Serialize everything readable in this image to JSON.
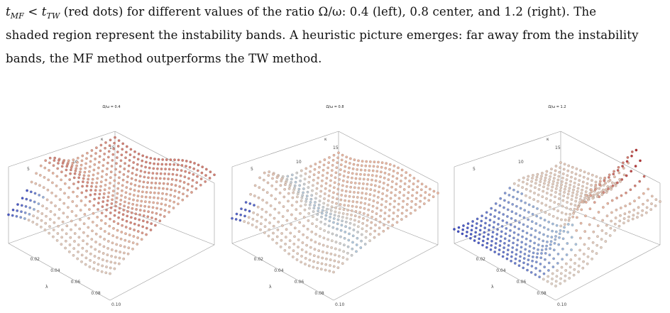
{
  "caption": {
    "line1_a": "t",
    "line1_a_sub": "MF",
    "line1_b": " < ",
    "line1_c": "t",
    "line1_c_sub": "TW",
    "line1_d": " (red dots) for different values of the ratio Ω/ω: 0.4 (left), 0.8 center, and 1.2 (right). The",
    "line2": "shaded region represent the instability bands. A heuristic picture emerges: far away from the instability",
    "line3": "bands, the MF method outperforms the TW method."
  },
  "panels": [
    {
      "title": "Ω/ω = 0.4",
      "ratio": 0.4,
      "z_axis_label": "κ",
      "z_ticks": [
        "15",
        "10",
        "5"
      ],
      "x_axis_label": "λ",
      "x_ticks": [
        "0.02",
        "0.04",
        "0.06",
        "0.08",
        "0.10"
      ],
      "surface": "mostly red (MF faster); blue near low-λ corner"
    },
    {
      "title": "Ω/ω = 0.8",
      "ratio": 0.8,
      "z_axis_label": "κ",
      "z_ticks": [
        "15",
        "10",
        "5"
      ],
      "x_axis_label": "λ",
      "x_ticks": [
        "0.02",
        "0.04",
        "0.06",
        "0.08",
        "0.10"
      ],
      "surface": "mixed; light blue ridge through middle"
    },
    {
      "title": "Ω/ω = 1.2",
      "ratio": 1.2,
      "z_axis_label": "κ",
      "z_ticks": [
        "15",
        "10",
        "5"
      ],
      "x_axis_label": "λ",
      "x_ticks": [
        "0.02",
        "0.04",
        "0.06",
        "0.08",
        "0.10"
      ],
      "surface": "large blue region front-left; red ridge at back"
    }
  ],
  "colors": {
    "red_dark": "#b2282d",
    "red_light": "#e8b7a3",
    "neutral": "#dfd6cc",
    "blue_light": "#a9c7e2",
    "blue_dark": "#2f3ec4",
    "box_edge": "#9a9a9a"
  }
}
